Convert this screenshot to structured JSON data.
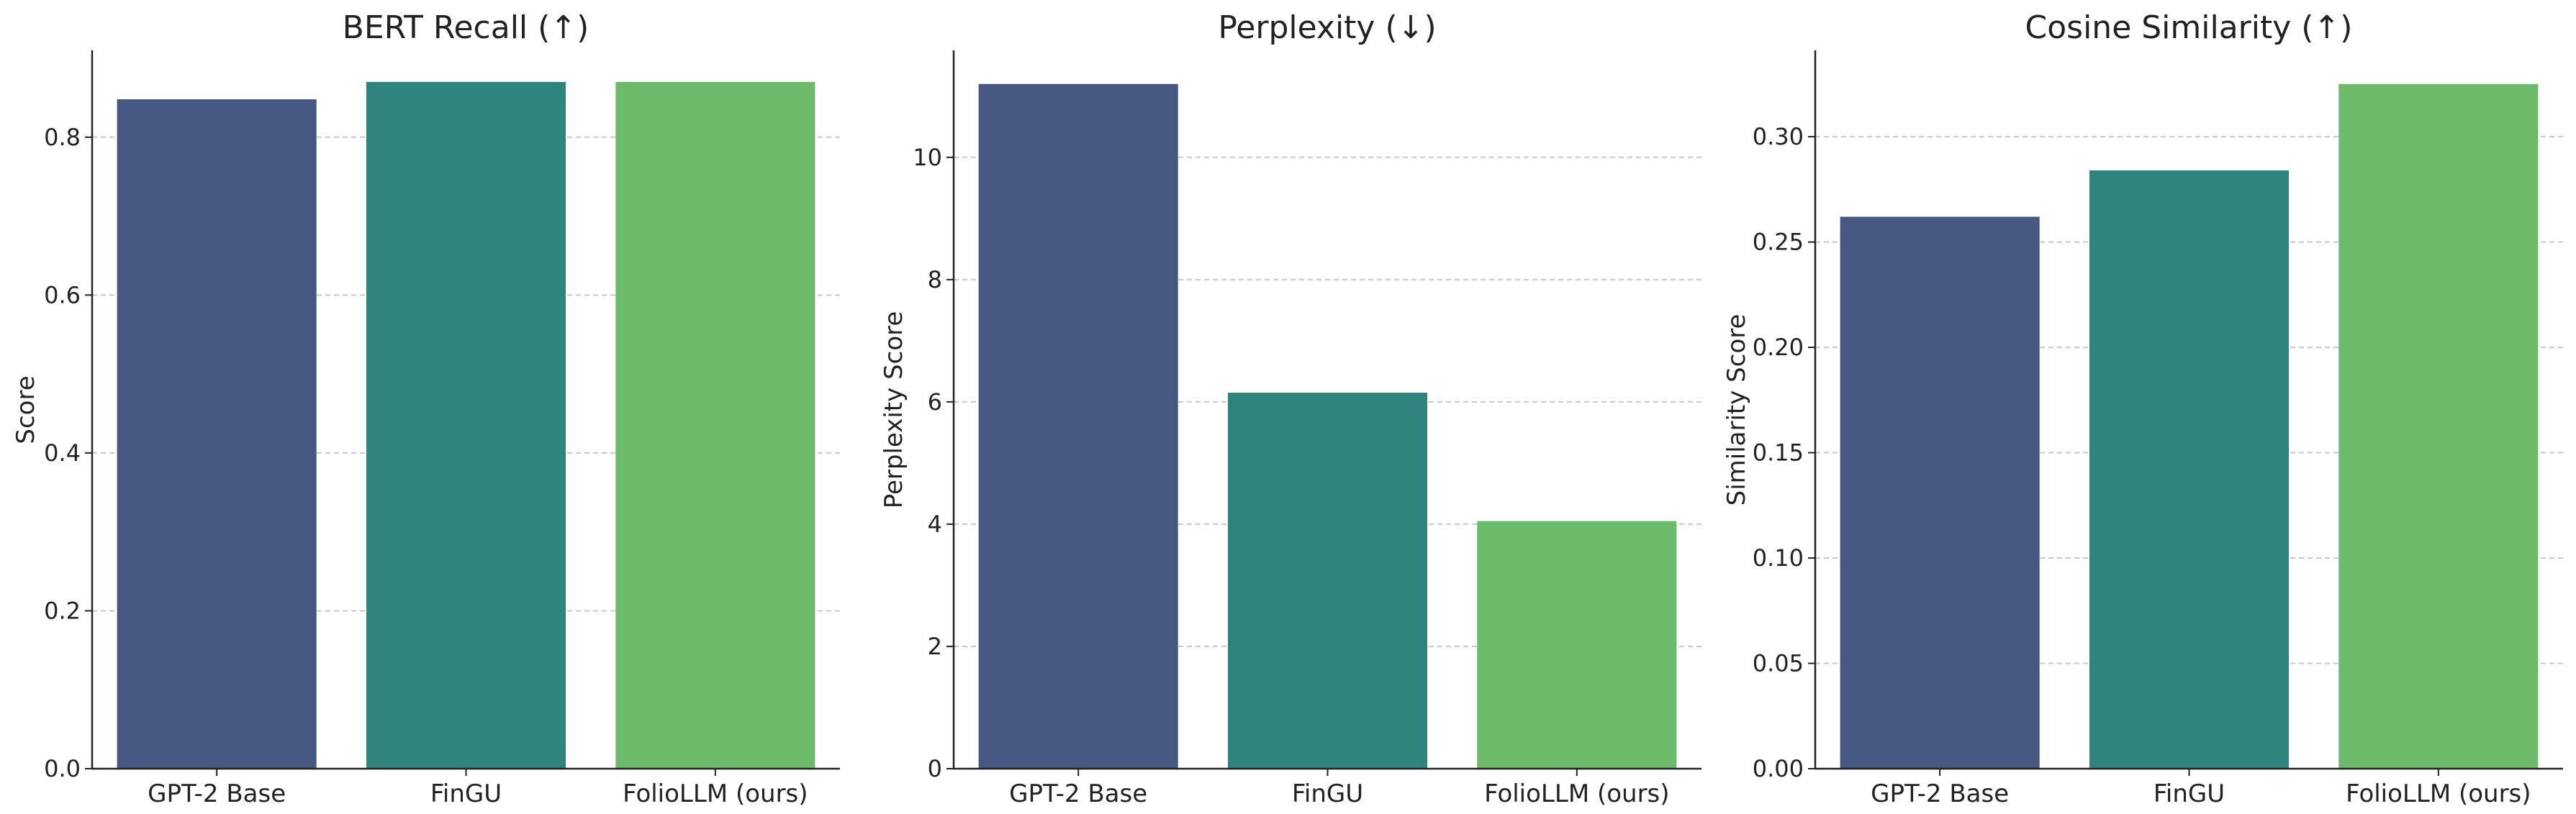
{
  "chart_data": [
    {
      "type": "bar",
      "title": "BERT Recall (↑)",
      "ylabel": "Score",
      "xlabel": "",
      "categories": [
        "GPT-2 Base",
        "FinGU",
        "FolioLLM (ours)"
      ],
      "values": [
        0.848,
        0.87,
        0.87
      ],
      "colors": [
        "#465881",
        "#2e837d",
        "#6cbb6b"
      ],
      "ylim": [
        0,
        0.91
      ],
      "yticks": [
        0.0,
        0.2,
        0.4,
        0.6,
        0.8
      ],
      "ytick_labels": [
        "0.0",
        "0.2",
        "0.4",
        "0.6",
        "0.8"
      ],
      "grid": "y-dashed"
    },
    {
      "type": "bar",
      "title": "Perplexity (↓)",
      "ylabel": "Perplexity Score",
      "xlabel": "",
      "categories": [
        "GPT-2 Base",
        "FinGU",
        "FolioLLM (ours)"
      ],
      "values": [
        11.2,
        6.15,
        4.05
      ],
      "colors": [
        "#465881",
        "#2e837d",
        "#6cbb6b"
      ],
      "ylim": [
        0,
        11.75
      ],
      "yticks": [
        0,
        2,
        4,
        6,
        8,
        10
      ],
      "ytick_labels": [
        "0",
        "2",
        "4",
        "6",
        "8",
        "10"
      ],
      "grid": "y-dashed"
    },
    {
      "type": "bar",
      "title": "Cosine Similarity (↑)",
      "ylabel": "Similarity Score",
      "xlabel": "",
      "categories": [
        "GPT-2 Base",
        "FinGU",
        "FolioLLM (ours)"
      ],
      "values": [
        0.262,
        0.284,
        0.325
      ],
      "colors": [
        "#465881",
        "#2e837d",
        "#6cbb6b"
      ],
      "ylim": [
        0,
        0.341
      ],
      "yticks": [
        0.0,
        0.05,
        0.1,
        0.15,
        0.2,
        0.25,
        0.3
      ],
      "ytick_labels": [
        "0.00",
        "0.05",
        "0.10",
        "0.15",
        "0.20",
        "0.25",
        "0.30"
      ],
      "grid": "y-dashed"
    }
  ]
}
